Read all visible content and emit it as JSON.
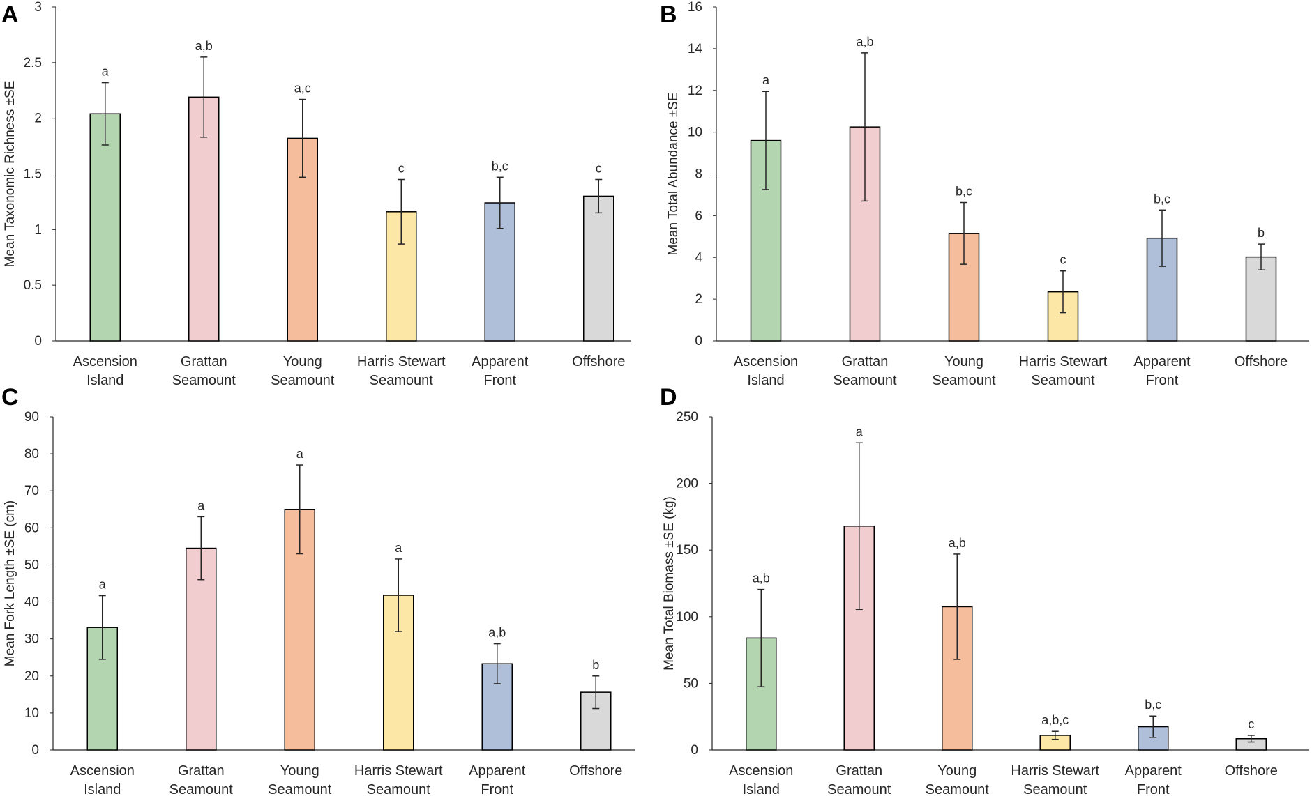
{
  "figure": {
    "colors": {
      "Ascension Island": "#b3d5b0",
      "Grattan Seamount": "#f2cdd0",
      "Young Seamount": "#f6bd9c",
      "Harris Stewart Seamount": "#fce7a6",
      "Apparent Front": "#afbfd9",
      "Offshore": "#d9d9d9"
    },
    "categories": [
      {
        "line1": "Ascension",
        "line2": "Island",
        "key": "Ascension Island"
      },
      {
        "line1": "Grattan",
        "line2": "Seamount",
        "key": "Grattan Seamount"
      },
      {
        "line1": "Young",
        "line2": "Seamount",
        "key": "Young Seamount"
      },
      {
        "line1": "Harris Stewart",
        "line2": "Seamount",
        "key": "Harris Stewart Seamount"
      },
      {
        "line1": "Apparent",
        "line2": "Front",
        "key": "Apparent Front"
      },
      {
        "line1": "Offshore",
        "line2": "",
        "key": "Offshore"
      }
    ]
  },
  "chart_data": [
    {
      "panel": "A",
      "type": "bar",
      "ylabel": "Mean Taxonomic Richness ±SE",
      "ylim": [
        0,
        3
      ],
      "yticks": [
        0,
        0.5,
        1,
        1.5,
        2,
        2.5,
        3
      ],
      "ytick_labels": [
        "0",
        "0.5",
        "1",
        "1.5",
        "2",
        "2.5",
        "3"
      ],
      "values": [
        2.04,
        2.19,
        1.82,
        1.16,
        1.24,
        1.3
      ],
      "se": [
        0.28,
        0.36,
        0.35,
        0.29,
        0.23,
        0.15
      ],
      "significance": [
        "a",
        "a,b",
        "a,c",
        "c",
        "b,c",
        "c"
      ]
    },
    {
      "panel": "B",
      "type": "bar",
      "ylabel": "Mean Total Abundance ±SE",
      "ylim": [
        0,
        16
      ],
      "yticks": [
        0,
        2,
        4,
        6,
        8,
        10,
        12,
        14,
        16
      ],
      "ytick_labels": [
        "0",
        "2",
        "4",
        "6",
        "8",
        "10",
        "12",
        "14",
        "16"
      ],
      "values": [
        9.6,
        10.25,
        5.15,
        2.35,
        4.92,
        4.02
      ],
      "se": [
        2.35,
        3.55,
        1.48,
        1.0,
        1.35,
        0.62
      ],
      "significance": [
        "a",
        "a,b",
        "b,c",
        "c",
        "b,c",
        "b"
      ]
    },
    {
      "panel": "C",
      "type": "bar",
      "ylabel": "Mean Fork Length ±SE (cm)",
      "ylim": [
        0,
        90
      ],
      "yticks": [
        0,
        10,
        20,
        30,
        40,
        50,
        60,
        70,
        80,
        90
      ],
      "ytick_labels": [
        "0",
        "10",
        "20",
        "30",
        "40",
        "50",
        "60",
        "70",
        "80",
        "90"
      ],
      "values": [
        33.1,
        54.5,
        65.0,
        41.8,
        23.3,
        15.6
      ],
      "se": [
        8.6,
        8.5,
        12.0,
        9.8,
        5.4,
        4.4
      ],
      "significance": [
        "a",
        "a",
        "a",
        "a",
        "a,b",
        "b"
      ]
    },
    {
      "panel": "D",
      "type": "bar",
      "ylabel": "Mean Total Biomass ±SE (kg)",
      "ylim": [
        0,
        250
      ],
      "yticks": [
        0,
        50,
        100,
        150,
        200,
        250
      ],
      "ytick_labels": [
        "0",
        "50",
        "100",
        "150",
        "200",
        "250"
      ],
      "values": [
        84.0,
        168.0,
        107.5,
        11.0,
        17.5,
        8.5
      ],
      "se": [
        36.5,
        62.5,
        39.5,
        3.0,
        8.0,
        2.5
      ],
      "significance": [
        "a,b",
        "a",
        "a,b",
        "a,b,c",
        "b,c",
        "c"
      ]
    }
  ]
}
